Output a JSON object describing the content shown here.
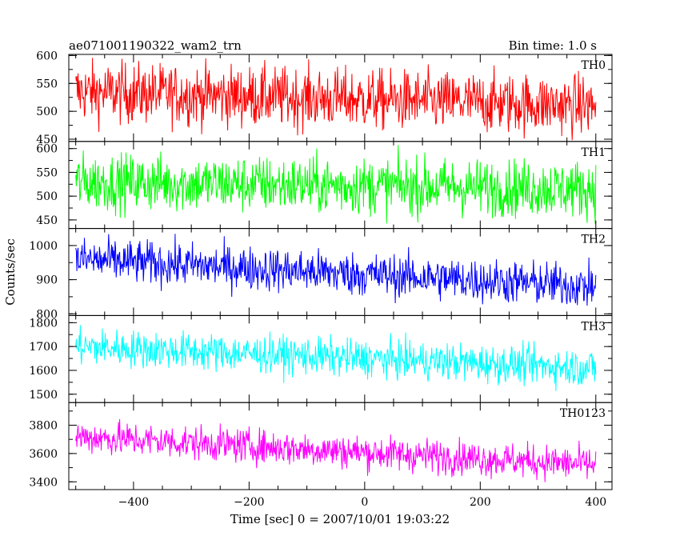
{
  "header": {
    "title": "ae071001190322_wam2_trn",
    "bin_time": "Bin time: 1.0 s"
  },
  "chart_data": {
    "type": "line",
    "title": "ae071001190322_wam2_trn",
    "bin_time": "Bin time: 1.0 s",
    "xlabel": "Time [sec] 0 = 2007/10/01 19:03:22",
    "ylabel": "Counts/sec",
    "xlim": [
      -512,
      428
    ],
    "x_ticks": [
      -400,
      -200,
      0,
      200,
      400
    ],
    "x_start": -500,
    "x_end": 400,
    "x_step": 1,
    "panels": [
      {
        "name": "TH0",
        "color": "#ff0000",
        "ylim": [
          446,
          602
        ],
        "yticks": [
          450,
          500,
          550,
          600
        ],
        "start_mean": 535,
        "end_mean": 510,
        "noise": 38
      },
      {
        "name": "TH1",
        "color": "#00ff00",
        "ylim": [
          432,
          615
        ],
        "yticks": [
          450,
          500,
          550,
          600
        ],
        "start_mean": 530,
        "end_mean": 515,
        "noise": 42
      },
      {
        "name": "TH2",
        "color": "#0000ff",
        "ylim": [
          795,
          1050
        ],
        "yticks": [
          800,
          900,
          1000
        ],
        "start_mean": 960,
        "end_mean": 880,
        "noise": 45
      },
      {
        "name": "TH3",
        "color": "#00ffff",
        "ylim": [
          1465,
          1830
        ],
        "yticks": [
          1500,
          1600,
          1700,
          1800
        ],
        "start_mean": 1700,
        "end_mean": 1610,
        "noise": 55
      },
      {
        "name": "TH0123",
        "color": "#ff00ff",
        "ylim": [
          3345,
          3960
        ],
        "yticks": [
          3400,
          3600,
          3800
        ],
        "start_mean": 3720,
        "end_mean": 3520,
        "noise": 85
      }
    ]
  }
}
